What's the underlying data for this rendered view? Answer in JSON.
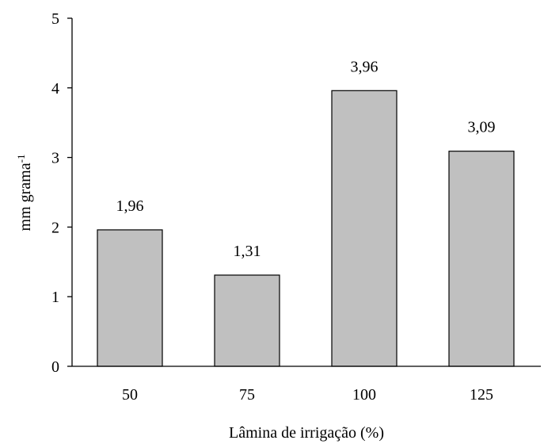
{
  "chart_data": {
    "type": "bar",
    "categories": [
      "50",
      "75",
      "100",
      "125"
    ],
    "values": [
      1.96,
      1.31,
      3.96,
      3.09
    ],
    "data_labels": [
      "1,96",
      "1,31",
      "3,96",
      "3,09"
    ],
    "xlabel": "Lâmina de irrigação (%)",
    "ylabel": "mm grama",
    "ylabel_superscript": "-1",
    "ylim": [
      0,
      5
    ],
    "yticks": [
      0,
      1,
      2,
      3,
      4,
      5
    ],
    "grid": false,
    "bar_color": "#c0c0c0",
    "bar_edge_color": "#000000"
  }
}
